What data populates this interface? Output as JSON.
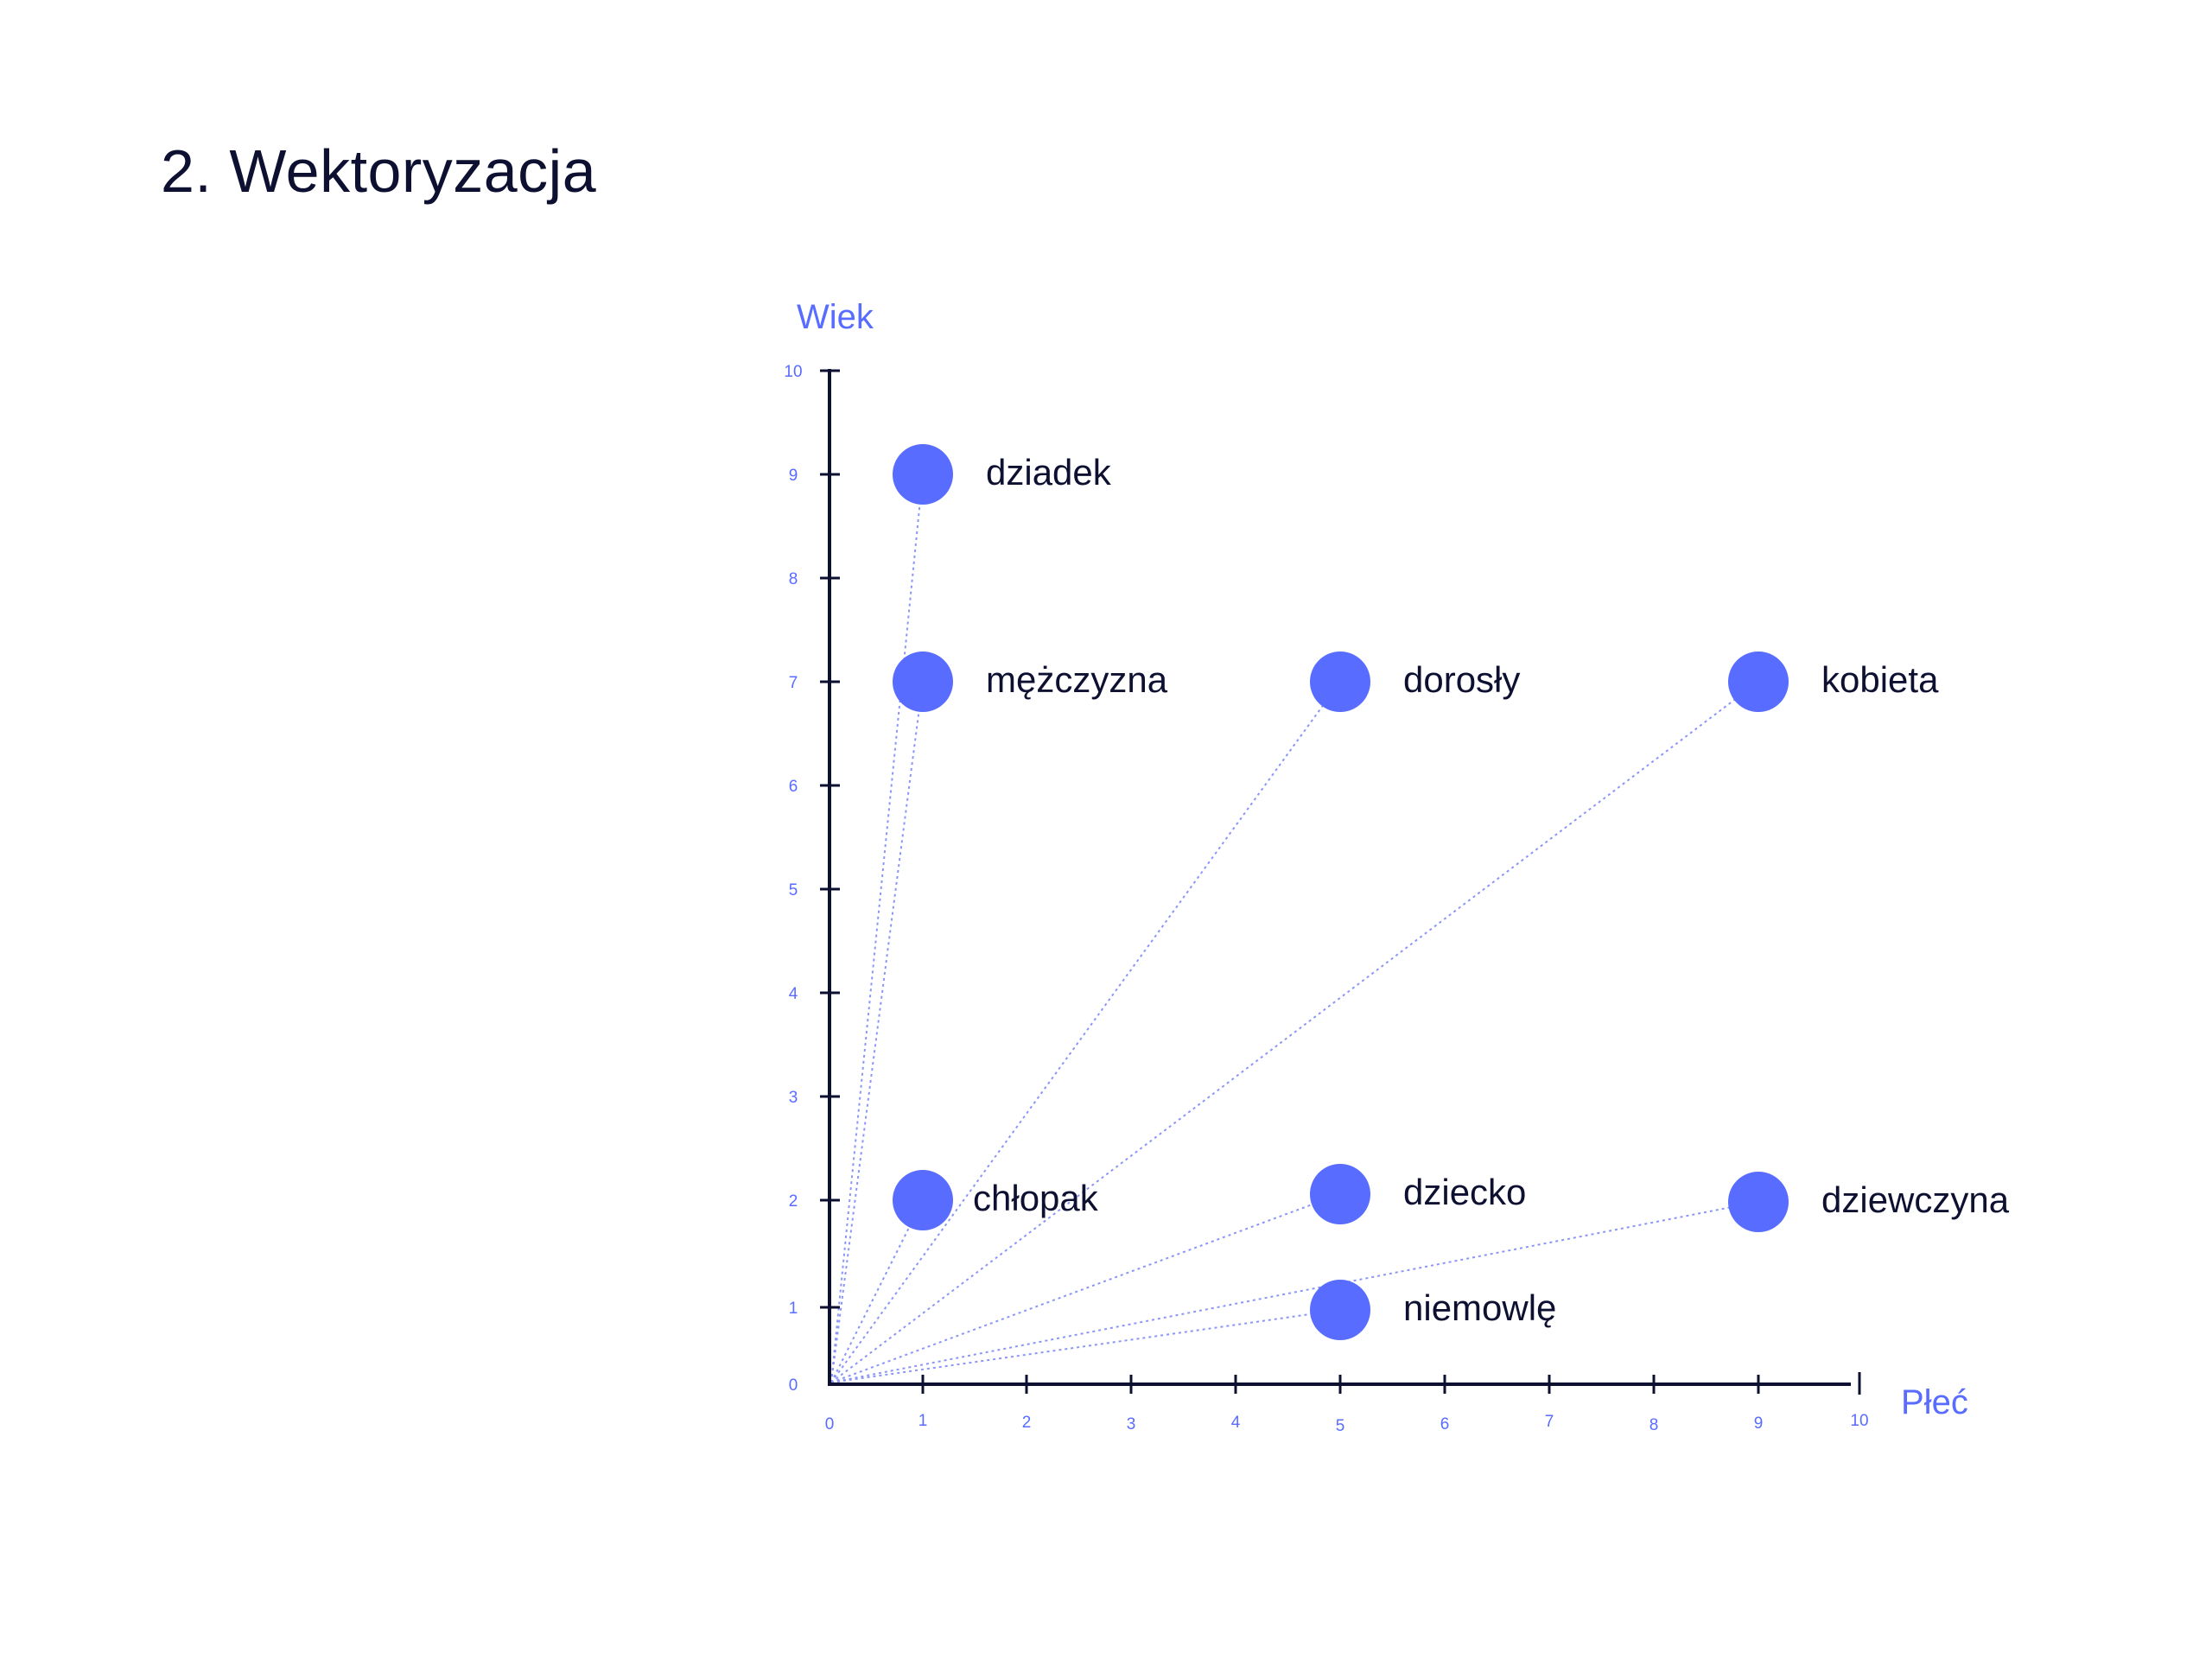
{
  "page": {
    "title": "2. Wektoryzacja"
  },
  "colors": {
    "accent": "#586cff",
    "vector_line": "#8b96f7",
    "axis": "#0d1030",
    "text": "#0d1030"
  },
  "chart_data": {
    "type": "scatter",
    "title": "",
    "xlabel": "Płeć",
    "ylabel": "Wiek",
    "xlim": [
      0,
      10
    ],
    "ylim": [
      0,
      10
    ],
    "grid": false,
    "x_ticks": [
      "0",
      "1",
      "2",
      "3",
      "4",
      "5",
      "6",
      "7",
      "8",
      "9",
      "10"
    ],
    "y_ticks": [
      "0",
      "1",
      "2",
      "3",
      "4",
      "5",
      "6",
      "7",
      "8",
      "9",
      "10"
    ],
    "vectors_from_origin": true,
    "points": [
      {
        "label": "dziadek",
        "x": 1,
        "y": 9
      },
      {
        "label": "mężczyzna",
        "x": 1,
        "y": 7
      },
      {
        "label": "dorosły",
        "x": 5,
        "y": 7
      },
      {
        "label": "kobieta",
        "x": 9,
        "y": 7
      },
      {
        "label": "chłopak",
        "x": 1,
        "y": 2
      },
      {
        "label": "dziecko",
        "x": 5,
        "y": 2
      },
      {
        "label": "dziewczyna",
        "x": 9,
        "y": 2
      },
      {
        "label": "niemowlę",
        "x": 5,
        "y": 1
      }
    ]
  }
}
